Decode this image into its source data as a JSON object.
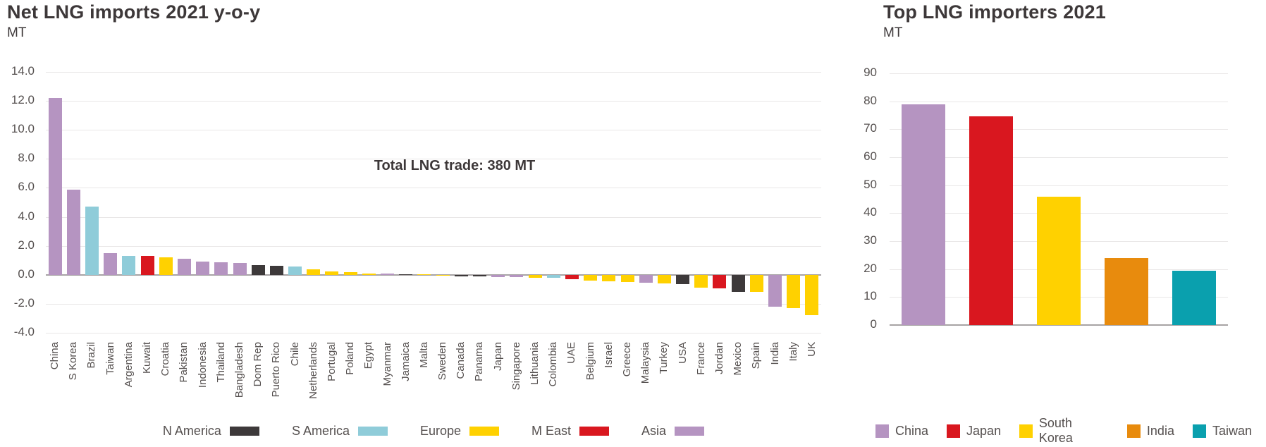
{
  "chart_data": [
    {
      "id": "net-lng-imports-yoy",
      "type": "bar",
      "title": "Net LNG imports 2021 y-o-y",
      "ylabel": "MT",
      "annotation": "Total LNG trade: 380 MT",
      "ylim": [
        -4,
        14
      ],
      "ytick_step": 2,
      "yticks": [
        "14.0",
        "12.0",
        "10.0",
        "8.0",
        "6.0",
        "4.0",
        "2.0",
        "0.0",
        "-2.0",
        "-4.0"
      ],
      "grid": true,
      "legend_position": "bottom",
      "legend": [
        {
          "label": "N America",
          "color": "#3d393a"
        },
        {
          "label": "S America",
          "color": "#8fccd9"
        },
        {
          "label": "Europe",
          "color": "#ffd100"
        },
        {
          "label": "M East",
          "color": "#d9171f"
        },
        {
          "label": "Asia",
          "color": "#b594c1"
        }
      ],
      "region_colors": {
        "N America": "#3d393a",
        "S America": "#8fccd9",
        "Europe": "#ffd100",
        "M East": "#d9171f",
        "Asia": "#b594c1"
      },
      "categories": [
        "China",
        "S Korea",
        "Brazil",
        "Taiwan",
        "Argentina",
        "Kuwait",
        "Croatia",
        "Pakistan",
        "Indonesia",
        "Thailand",
        "Bangladesh",
        "Dom Rep",
        "Puerto Rico",
        "Chile",
        "Netherlands",
        "Portugal",
        "Poland",
        "Egypt",
        "Myanmar",
        "Jamaica",
        "Malta",
        "Sweden",
        "Canada",
        "Panama",
        "Japan",
        "Singapore",
        "Lithuania",
        "Colombia",
        "UAE",
        "Belgium",
        "Israel",
        "Greece",
        "Malaysia",
        "Turkey",
        "USA",
        "France",
        "Jordan",
        "Mexico",
        "Spain",
        "India",
        "Italy",
        "UK"
      ],
      "regions": [
        "Asia",
        "Asia",
        "S America",
        "Asia",
        "S America",
        "M East",
        "Europe",
        "Asia",
        "Asia",
        "Asia",
        "Asia",
        "N America",
        "N America",
        "S America",
        "Europe",
        "Europe",
        "Europe",
        "Europe",
        "Asia",
        "N America",
        "Europe",
        "Europe",
        "N America",
        "N America",
        "Asia",
        "Asia",
        "Europe",
        "S America",
        "M East",
        "Europe",
        "Europe",
        "Europe",
        "Asia",
        "Europe",
        "N America",
        "Europe",
        "M East",
        "N America",
        "Europe",
        "Asia",
        "Europe",
        "Europe"
      ],
      "values": [
        12.2,
        5.9,
        4.7,
        1.5,
        1.3,
        1.3,
        1.2,
        1.1,
        0.9,
        0.85,
        0.8,
        0.65,
        0.6,
        0.55,
        0.4,
        0.25,
        0.2,
        0.1,
        0.08,
        0.03,
        0.02,
        -0.05,
        -0.12,
        -0.13,
        -0.15,
        -0.17,
        -0.2,
        -0.22,
        -0.3,
        -0.42,
        -0.45,
        -0.5,
        -0.55,
        -0.6,
        -0.62,
        -0.9,
        -0.95,
        -1.2,
        -1.2,
        -2.2,
        -2.3,
        -2.8
      ]
    },
    {
      "id": "top-lng-importers",
      "type": "bar",
      "title": "Top LNG importers 2021",
      "ylabel": "MT",
      "ylim": [
        0,
        90
      ],
      "ytick_step": 10,
      "yticks": [
        "90",
        "80",
        "70",
        "60",
        "50",
        "40",
        "30",
        "20",
        "10",
        "0"
      ],
      "grid": true,
      "legend_position": "bottom",
      "legend": [
        {
          "label": "China",
          "color": "#b594c1"
        },
        {
          "label": "Japan",
          "color": "#d9171f"
        },
        {
          "label": "South Korea",
          "color": "#ffd100"
        },
        {
          "label": "India",
          "color": "#e88b0d"
        },
        {
          "label": "Taiwan",
          "color": "#0aa0ae"
        }
      ],
      "categories": [
        "China",
        "Japan",
        "South Korea",
        "India",
        "Taiwan"
      ],
      "values": [
        79,
        74.5,
        46,
        24,
        19.5
      ],
      "colors": [
        "#b594c1",
        "#d9171f",
        "#ffd100",
        "#e88b0d",
        "#0aa0ae"
      ]
    }
  ]
}
